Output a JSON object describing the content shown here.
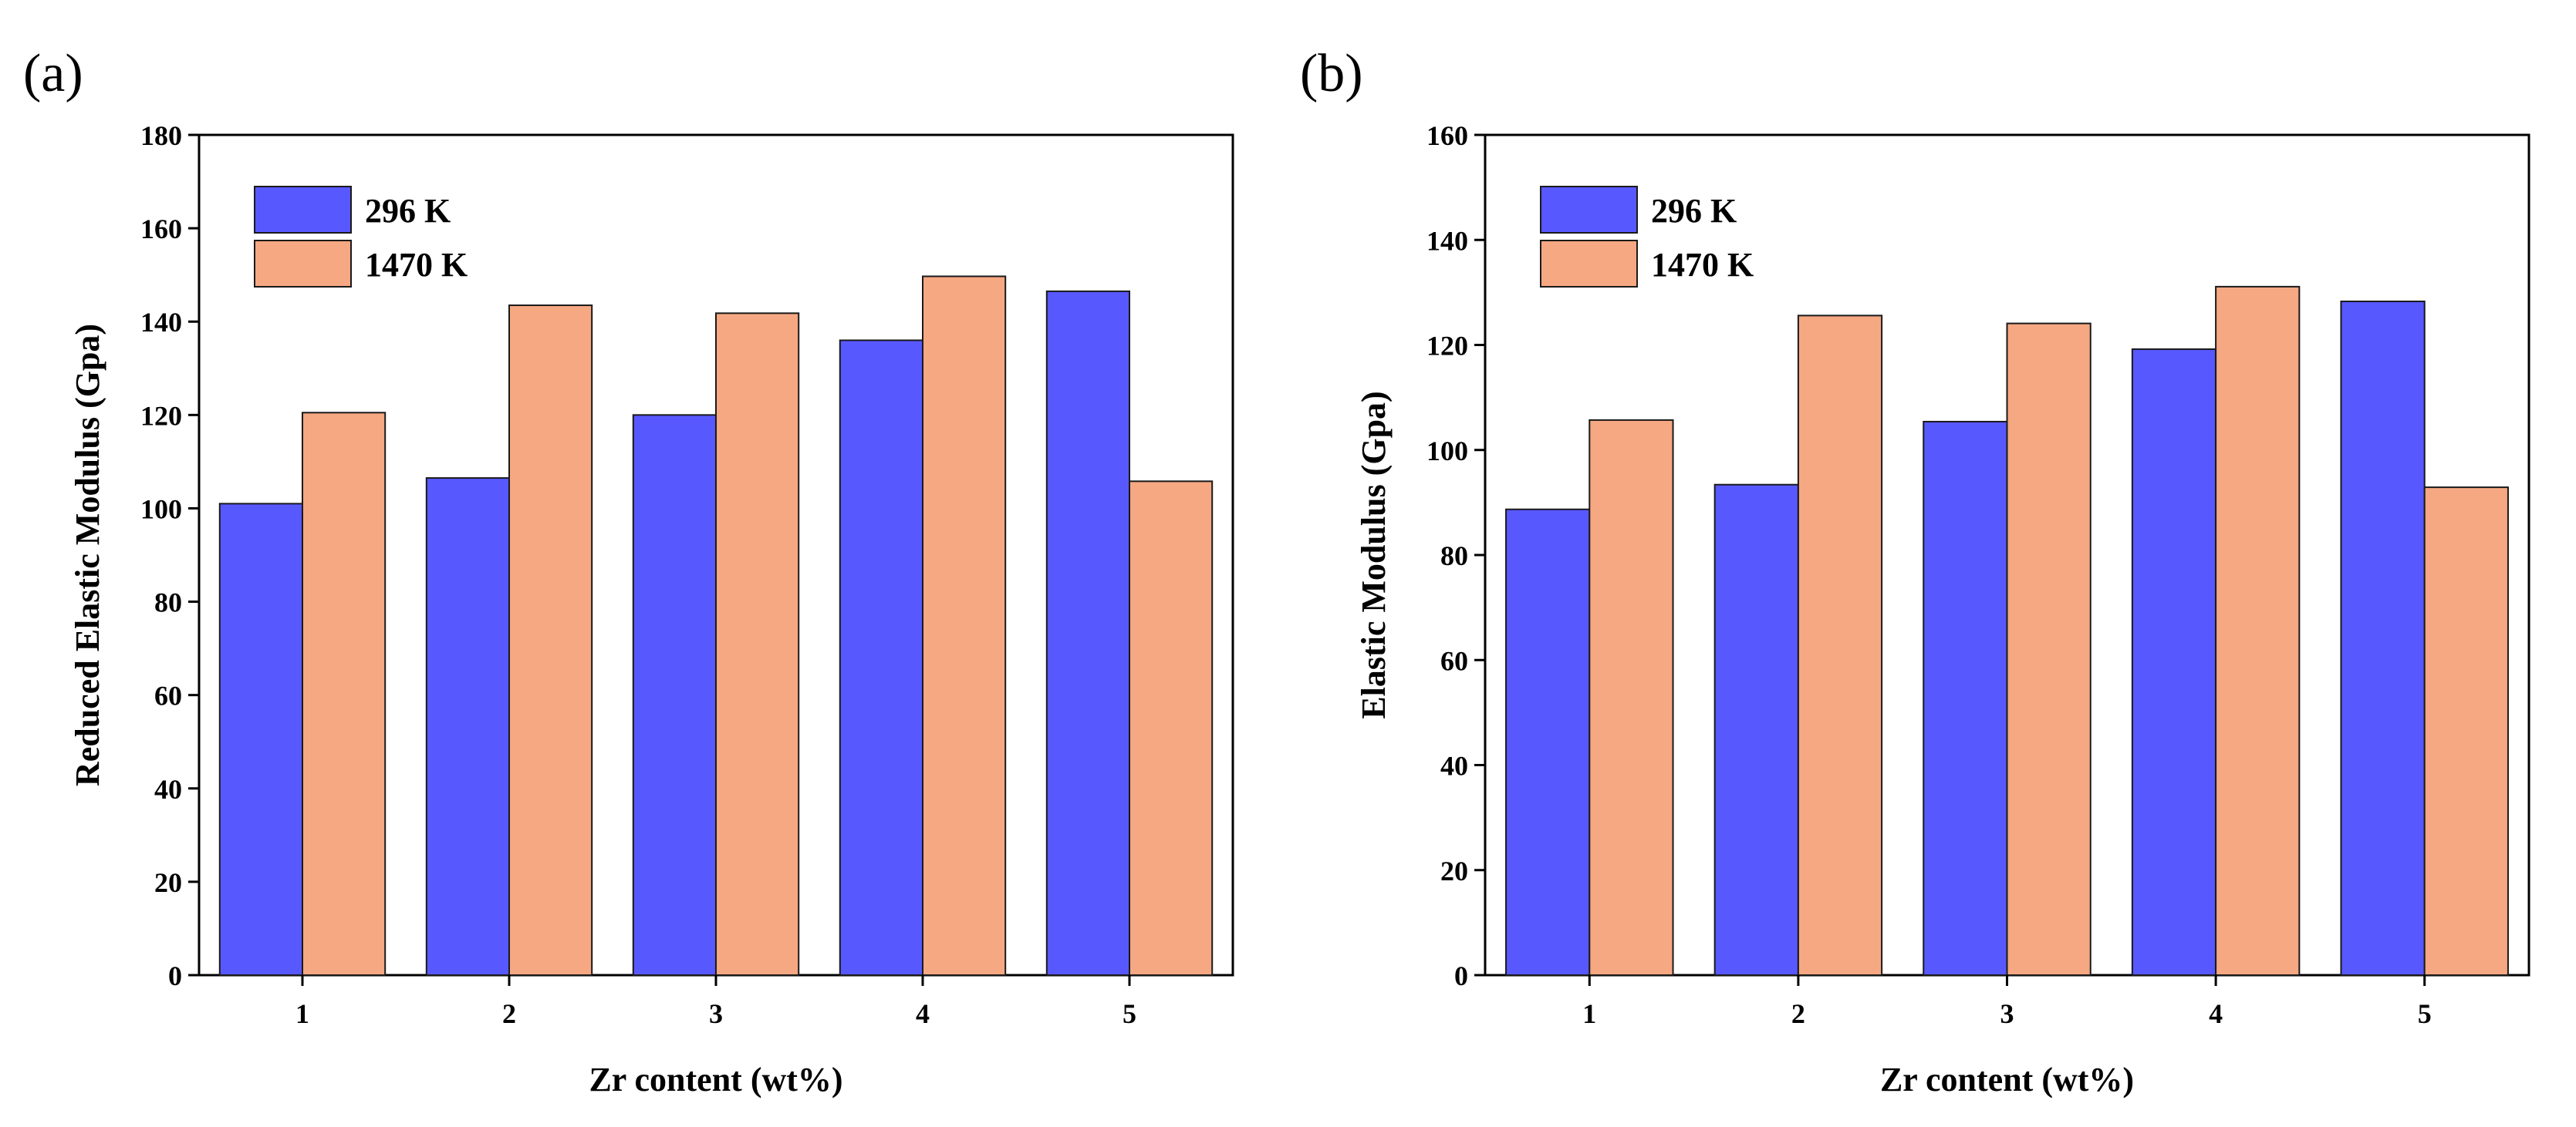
{
  "colors": {
    "series_296": "#5858ff",
    "series_1470": "#f5a882",
    "bar_outline": "#1a1a1a",
    "axis": "#000000"
  },
  "chart_data": [
    {
      "panel_label": "(a)",
      "type": "bar",
      "categories": [
        "1",
        "2",
        "3",
        "4",
        "5"
      ],
      "series": [
        {
          "name": "296 K",
          "values": [
            101,
            106.5,
            120,
            136,
            146.5
          ]
        },
        {
          "name": "1470 K",
          "values": [
            120.5,
            143.5,
            141.8,
            149.7,
            105.8
          ]
        }
      ],
      "title": "",
      "xlabel": "Zr content (wt%)",
      "ylabel": "Reduced Elastic Modulus (Gpa)",
      "ylim": [
        0,
        180
      ],
      "yticks": [
        0,
        20,
        40,
        60,
        80,
        100,
        120,
        140,
        160,
        180
      ],
      "ytick_labels": [
        "0",
        "20",
        "40",
        "60",
        "80",
        "100",
        "120",
        "140",
        "160",
        "180"
      ],
      "grid": false,
      "legend_position": "top-left"
    },
    {
      "panel_label": "(b)",
      "type": "bar",
      "categories": [
        "1",
        "2",
        "3",
        "4",
        "5"
      ],
      "series": [
        {
          "name": "296 K",
          "values": [
            88.7,
            93.4,
            105.4,
            119.2,
            128.3
          ]
        },
        {
          "name": "1470 K",
          "values": [
            105.7,
            125.6,
            124.1,
            131.1,
            92.9
          ]
        }
      ],
      "title": "",
      "xlabel": "Zr content (wt%)",
      "ylabel": "Elastic Modulus (Gpa)",
      "ylim": [
        0,
        160
      ],
      "yticks": [
        0,
        20,
        40,
        60,
        80,
        100,
        120,
        140,
        160
      ],
      "ytick_labels": [
        "0",
        "20",
        "40",
        "60",
        "80",
        "100",
        "120",
        "140",
        "160"
      ],
      "grid": false,
      "legend_position": "top-left"
    }
  ]
}
